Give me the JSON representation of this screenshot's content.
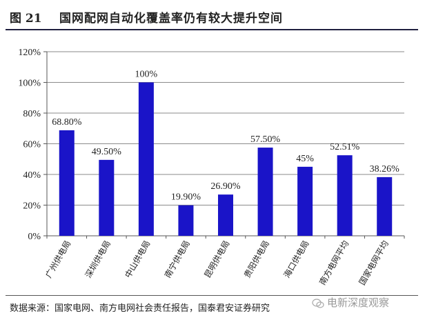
{
  "figure": {
    "label": "图 21",
    "title": "国网配网自动化覆盖率仍有较大提升空间",
    "source": "数据来源：国家电网、南方电网社会责任报告，国泰君安证券研究",
    "watermark": "电新深度观察"
  },
  "chart_data": {
    "type": "bar",
    "categories": [
      "广州供电局",
      "深圳供电局",
      "中山供电局",
      "南宁供电局",
      "昆明供电局",
      "贵阳供电局",
      "海口供电局",
      "南方电网平均",
      "国家电网平均"
    ],
    "values": [
      68.8,
      49.5,
      100,
      19.9,
      26.9,
      57.5,
      45,
      52.51,
      38.26
    ],
    "data_labels": [
      "68.80%",
      "49.50%",
      "100%",
      "19.90%",
      "26.90%",
      "57.50%",
      "45%",
      "52.51%",
      "38.26%"
    ],
    "ylim": [
      0,
      120
    ],
    "yticks": [
      0,
      20,
      40,
      60,
      80,
      100,
      120
    ],
    "ytick_labels": [
      "0%",
      "20%",
      "40%",
      "60%",
      "80%",
      "100%",
      "120%"
    ],
    "grid": true,
    "bar_color": "#1a14c8",
    "grid_color": "#8a8a8a"
  }
}
